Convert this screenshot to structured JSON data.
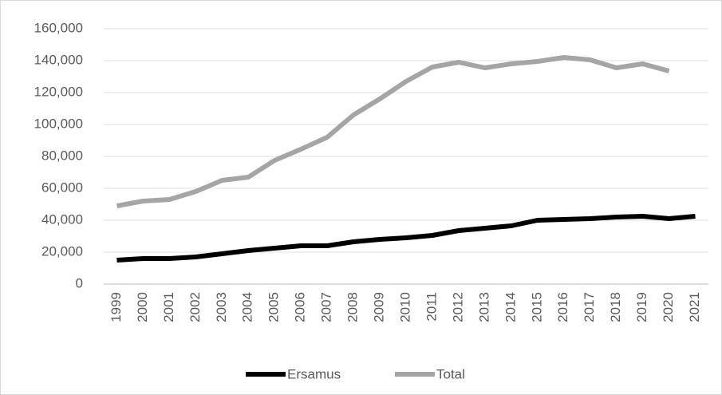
{
  "chart_data": {
    "type": "line",
    "categories": [
      "1999",
      "2000",
      "2001",
      "2002",
      "2003",
      "2004",
      "2005",
      "2006",
      "2007",
      "2008",
      "2009",
      "2010",
      "2011",
      "2012",
      "2013",
      "2014",
      "2015",
      "2016",
      "2017",
      "2018",
      "2019",
      "2020",
      "2021"
    ],
    "series": [
      {
        "name": "Ersamus",
        "color": "#000000",
        "values": [
          15000,
          16000,
          16000,
          17000,
          19000,
          21000,
          22500,
          24000,
          24000,
          26500,
          28000,
          29000,
          30500,
          33500,
          35000,
          36500,
          40000,
          40500,
          41000,
          42000,
          42500,
          41000,
          42500
        ]
      },
      {
        "name": "Total",
        "color": "#a5a5a5",
        "values": [
          49000,
          52000,
          53000,
          58000,
          65000,
          67000,
          77500,
          84500,
          92000,
          106000,
          116000,
          127000,
          136000,
          139000,
          135500,
          138000,
          139500,
          142000,
          140500,
          135500,
          138000,
          133500,
          null
        ]
      }
    ],
    "ylim": [
      0,
      160000
    ],
    "yticks": [
      0,
      {
        "value": 20000,
        "label": "20,000"
      },
      {
        "value": 40000,
        "label": "40,000"
      },
      {
        "value": 60000,
        "label": "60,000"
      },
      {
        "value": 80000,
        "label": "80,000"
      },
      {
        "value": 100000,
        "label": "100,000"
      },
      {
        "value": 120000,
        "label": "120,000"
      },
      {
        "value": 140000,
        "label": "140,000"
      },
      {
        "value": 160000,
        "label": "160,000"
      }
    ],
    "grid": true,
    "legend": "bottom"
  }
}
